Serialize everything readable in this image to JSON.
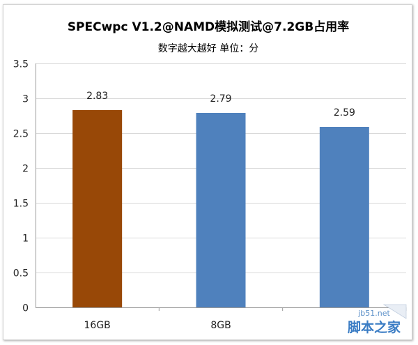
{
  "chart_data": {
    "type": "bar",
    "title": "SPECwpc V1.2@NAMD模拟测试@7.2GB占用率",
    "subtitle": "数字越大越好 单位：分",
    "categories": [
      "16GB",
      "8GB",
      ""
    ],
    "values": [
      2.83,
      2.79,
      2.59
    ],
    "data_labels": [
      "2.83",
      "2.79",
      "2.59"
    ],
    "bar_colors": [
      "#984807",
      "#4f81bd",
      "#4f81bd"
    ],
    "ylim": [
      0,
      3.5
    ],
    "yticks": [
      0,
      0.5,
      1,
      1.5,
      2,
      2.5,
      3,
      3.5
    ],
    "ytick_labels": [
      "0",
      "0.5",
      "1",
      "1.5",
      "2",
      "2.5",
      "3",
      "3.5"
    ],
    "xlabel": "",
    "ylabel": "",
    "grid": true,
    "legend": "none"
  },
  "watermark": {
    "url": "jb51.net",
    "name": "脚本之家"
  }
}
